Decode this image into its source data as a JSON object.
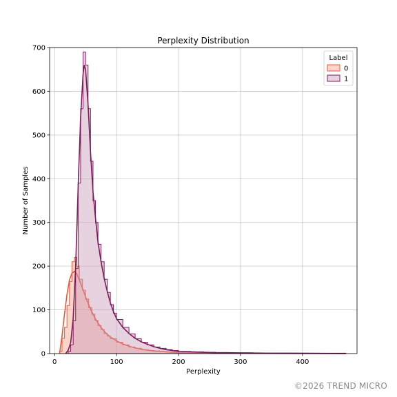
{
  "chart_data": {
    "type": "histogram",
    "title": "Perplexity Distribution",
    "xlabel": "Perplexity",
    "ylabel": "Number of Samples",
    "xlim": [
      -8,
      488
    ],
    "ylim": [
      0,
      700
    ],
    "x_ticks": [
      0,
      100,
      200,
      300,
      400
    ],
    "y_ticks": [
      0,
      100,
      200,
      300,
      400,
      500,
      600,
      700
    ],
    "grid": true,
    "legend": {
      "title": "Label",
      "placement": "top-right",
      "entries": [
        "0",
        "1"
      ]
    },
    "series": [
      {
        "name": "0",
        "fill_color": "#f7a08a",
        "line_color": "#e8573c",
        "hist": [
          [
            8,
            5
          ],
          [
            12,
            35
          ],
          [
            16,
            60
          ],
          [
            20,
            110
          ],
          [
            24,
            165
          ],
          [
            28,
            210
          ],
          [
            32,
            220
          ],
          [
            36,
            200
          ],
          [
            40,
            170
          ],
          [
            45,
            145
          ],
          [
            50,
            125
          ],
          [
            55,
            105
          ],
          [
            60,
            90
          ],
          [
            65,
            76
          ],
          [
            70,
            64
          ],
          [
            75,
            55
          ],
          [
            80,
            46
          ],
          [
            85,
            40
          ],
          [
            90,
            34
          ],
          [
            100,
            26
          ],
          [
            110,
            20
          ],
          [
            120,
            15
          ],
          [
            130,
            12
          ],
          [
            140,
            9
          ],
          [
            150,
            7
          ],
          [
            160,
            6
          ],
          [
            170,
            5
          ],
          [
            180,
            4
          ],
          [
            190,
            3
          ],
          [
            200,
            2
          ],
          [
            220,
            2
          ],
          [
            240,
            1
          ],
          [
            260,
            1
          ],
          [
            280,
            1
          ],
          [
            300,
            1
          ],
          [
            350,
            0
          ],
          [
            400,
            0
          ],
          [
            470,
            0
          ]
        ],
        "kde": [
          [
            8,
            0
          ],
          [
            12,
            40
          ],
          [
            16,
            90
          ],
          [
            20,
            135
          ],
          [
            24,
            168
          ],
          [
            28,
            184
          ],
          [
            32,
            188
          ],
          [
            36,
            182
          ],
          [
            40,
            168
          ],
          [
            45,
            150
          ],
          [
            50,
            130
          ],
          [
            55,
            112
          ],
          [
            60,
            96
          ],
          [
            65,
            82
          ],
          [
            70,
            70
          ],
          [
            75,
            60
          ],
          [
            80,
            51
          ],
          [
            85,
            44
          ],
          [
            90,
            38
          ],
          [
            100,
            29
          ],
          [
            110,
            22
          ],
          [
            120,
            17
          ],
          [
            130,
            13
          ],
          [
            140,
            10
          ],
          [
            150,
            8
          ],
          [
            160,
            6
          ],
          [
            170,
            5
          ],
          [
            180,
            4
          ],
          [
            190,
            3
          ],
          [
            200,
            2
          ],
          [
            220,
            1.5
          ],
          [
            240,
            1
          ],
          [
            260,
            1
          ],
          [
            300,
            0.5
          ],
          [
            350,
            0.2
          ],
          [
            400,
            0.1
          ],
          [
            470,
            0
          ]
        ]
      },
      {
        "name": "1",
        "fill_color": "#c99bb8",
        "line_color": "#7d1c5c",
        "hist": [
          [
            18,
            0
          ],
          [
            22,
            5
          ],
          [
            26,
            20
          ],
          [
            30,
            75
          ],
          [
            34,
            195
          ],
          [
            38,
            390
          ],
          [
            42,
            560
          ],
          [
            46,
            690
          ],
          [
            50,
            660
          ],
          [
            54,
            560
          ],
          [
            58,
            440
          ],
          [
            62,
            350
          ],
          [
            66,
            300
          ],
          [
            70,
            250
          ],
          [
            75,
            210
          ],
          [
            80,
            170
          ],
          [
            85,
            140
          ],
          [
            90,
            112
          ],
          [
            95,
            92
          ],
          [
            100,
            78
          ],
          [
            110,
            60
          ],
          [
            120,
            45
          ],
          [
            130,
            34
          ],
          [
            140,
            26
          ],
          [
            150,
            20
          ],
          [
            160,
            15
          ],
          [
            170,
            12
          ],
          [
            180,
            9
          ],
          [
            190,
            7
          ],
          [
            200,
            5
          ],
          [
            220,
            4
          ],
          [
            240,
            3
          ],
          [
            260,
            2
          ],
          [
            280,
            2
          ],
          [
            300,
            2
          ],
          [
            320,
            1
          ],
          [
            340,
            1
          ],
          [
            360,
            1
          ],
          [
            380,
            1
          ],
          [
            400,
            1
          ],
          [
            440,
            1
          ],
          [
            470,
            0
          ]
        ],
        "kde": [
          [
            18,
            0
          ],
          [
            22,
            8
          ],
          [
            26,
            25
          ],
          [
            30,
            80
          ],
          [
            34,
            200
          ],
          [
            38,
            380
          ],
          [
            42,
            540
          ],
          [
            46,
            640
          ],
          [
            48,
            660
          ],
          [
            50,
            650
          ],
          [
            54,
            570
          ],
          [
            58,
            460
          ],
          [
            62,
            370
          ],
          [
            66,
            310
          ],
          [
            70,
            255
          ],
          [
            75,
            210
          ],
          [
            80,
            172
          ],
          [
            85,
            142
          ],
          [
            90,
            116
          ],
          [
            95,
            96
          ],
          [
            100,
            80
          ],
          [
            110,
            60
          ],
          [
            120,
            46
          ],
          [
            130,
            35
          ],
          [
            140,
            27
          ],
          [
            150,
            21
          ],
          [
            160,
            16
          ],
          [
            170,
            12
          ],
          [
            180,
            9
          ],
          [
            190,
            7
          ],
          [
            200,
            5
          ],
          [
            220,
            4
          ],
          [
            240,
            3
          ],
          [
            260,
            2
          ],
          [
            280,
            2
          ],
          [
            300,
            1.5
          ],
          [
            340,
            1
          ],
          [
            380,
            1
          ],
          [
            420,
            0.5
          ],
          [
            470,
            0
          ]
        ]
      }
    ]
  },
  "watermark": "©2026 TREND MICRO"
}
